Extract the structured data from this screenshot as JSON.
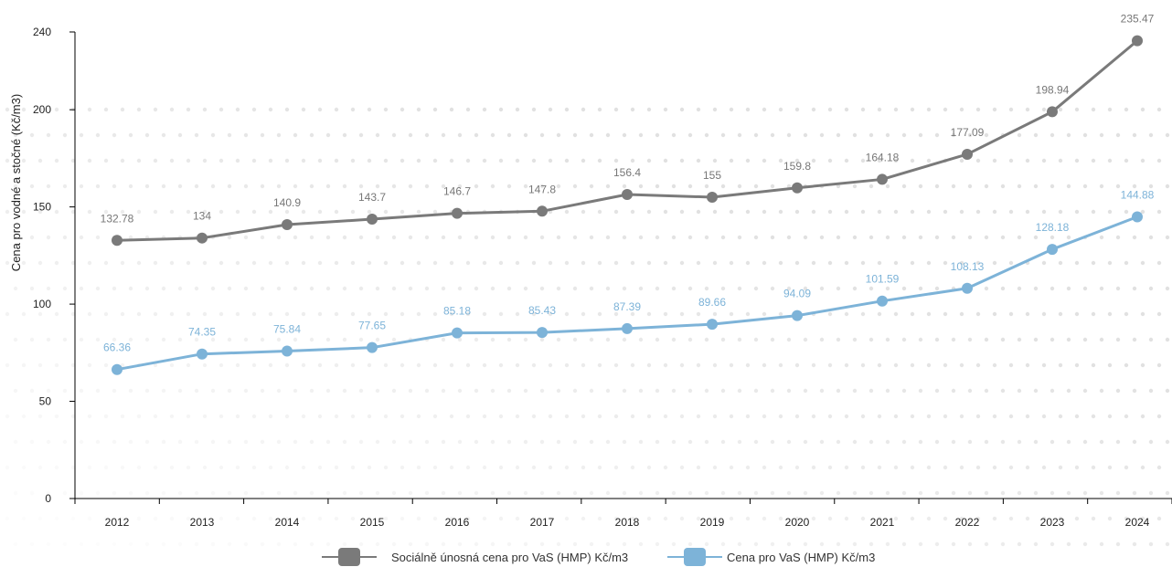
{
  "chart_data": {
    "type": "line",
    "title": "",
    "xlabel": "",
    "ylabel": "Cena pro vodné a stočné (Kč/m3)",
    "ylim": [
      0,
      240
    ],
    "yticks": [
      "0",
      "50",
      "100",
      "150",
      "200",
      "240"
    ],
    "categories": [
      "2012",
      "2013",
      "2014",
      "2015",
      "2016",
      "2017",
      "2018",
      "2019",
      "2020",
      "2021",
      "2022",
      "2023",
      "2024"
    ],
    "grid": false,
    "legend_position": "bottom",
    "series": [
      {
        "name": "Sociálně únosná cena pro VaS (HMP) Kč/m3",
        "color": "#7a7a7a",
        "values": [
          132.78,
          134,
          140.9,
          143.7,
          146.7,
          147.8,
          156.4,
          155,
          159.8,
          164.18,
          177.09,
          198.94,
          235.47
        ],
        "labels": [
          "132.78",
          "134",
          "140.9",
          "143.7",
          "146.7",
          "147.8",
          "156.4",
          "155",
          "159.8",
          "164.18",
          "177.09",
          "198.94",
          "235.47"
        ]
      },
      {
        "name": "Cena pro VaS (HMP) Kč/m3",
        "color": "#7db3d8",
        "values": [
          66.36,
          74.35,
          75.84,
          77.65,
          85.18,
          85.43,
          87.39,
          89.66,
          94.09,
          101.59,
          108.13,
          128.18,
          144.88
        ],
        "labels": [
          "66.36",
          "74.35",
          "75.84",
          "77.65",
          "85.18",
          "85.43",
          "87.39",
          "89.66",
          "94.09",
          "101.59",
          "108.13",
          "128.18",
          "144.88"
        ]
      }
    ]
  }
}
